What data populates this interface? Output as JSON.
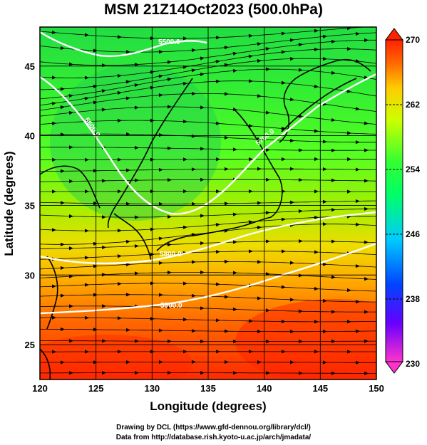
{
  "title": "MSM 21Z14Oct2023 (500.0hPa)",
  "x_axis": {
    "label": "Longitude (degrees)",
    "ticks": [
      "120",
      "125",
      "130",
      "135",
      "140",
      "145",
      "150"
    ],
    "range": [
      120,
      150
    ]
  },
  "y_axis": {
    "label": "Latitude  (degrees)",
    "ticks": [
      "25",
      "30",
      "35",
      "40",
      "45"
    ],
    "range": [
      22.5,
      47.8
    ]
  },
  "colorbar": {
    "ticks": [
      "270",
      "262",
      "254",
      "246",
      "238",
      "230"
    ],
    "range": [
      230,
      270
    ],
    "colors": [
      "#ff33cc",
      "#6600ff",
      "#0044ff",
      "#00ccff",
      "#00ff66",
      "#33ff33",
      "#ccff00",
      "#ffcc00",
      "#ff6600",
      "#ff2200"
    ]
  },
  "contours": {
    "labels": [
      "5500.0",
      "5600.0",
      "5700.0",
      "5800.0",
      "5900.0"
    ],
    "color": "#ffffff"
  },
  "credits": {
    "line1": "Drawing by DCL (https://www.gfd-dennou.org/library/dcl/)",
    "line2": "Data from http://database.rish.kyoto-u.ac.jp/arch/jmadata/"
  }
}
